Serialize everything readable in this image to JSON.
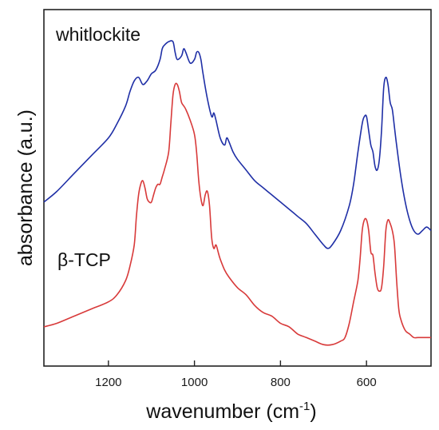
{
  "chart_data": {
    "type": "line",
    "title": "",
    "xlabel": "wavenumber",
    "xlabel_unit_base": "cm",
    "xlabel_unit_exp": "-1",
    "ylabel": "absorbance (a.u.)",
    "xlim": [
      1350,
      450
    ],
    "x_reversed": true,
    "ylim": [
      0,
      1
    ],
    "xticks": [
      1200,
      1000,
      800,
      600
    ],
    "xtick_labels": [
      "1200",
      "1000",
      "800",
      "600"
    ],
    "yticks_shown": false,
    "grid": false,
    "legend": "none",
    "series": [
      {
        "name": "whitlockite",
        "color": "#1f2fa6",
        "x": [
          1350,
          1320,
          1280,
          1240,
          1200,
          1180,
          1160,
          1150,
          1140,
          1130,
          1120,
          1110,
          1100,
          1090,
          1080,
          1075,
          1070,
          1060,
          1050,
          1045,
          1040,
          1030,
          1025,
          1020,
          1010,
          1000,
          995,
          990,
          985,
          980,
          970,
          960,
          955,
          950,
          940,
          930,
          925,
          920,
          910,
          900,
          880,
          860,
          840,
          820,
          800,
          780,
          760,
          740,
          720,
          700,
          690,
          680,
          660,
          640,
          630,
          620,
          610,
          605,
          600,
          595,
          590,
          585,
          580,
          575,
          570,
          565,
          560,
          555,
          550,
          545,
          540,
          535,
          530,
          520,
          510,
          500,
          490,
          480,
          470,
          460,
          450
        ],
        "y": [
          0.46,
          0.49,
          0.54,
          0.59,
          0.64,
          0.68,
          0.73,
          0.77,
          0.8,
          0.81,
          0.79,
          0.8,
          0.82,
          0.83,
          0.86,
          0.89,
          0.9,
          0.91,
          0.91,
          0.88,
          0.86,
          0.87,
          0.89,
          0.88,
          0.85,
          0.86,
          0.88,
          0.88,
          0.86,
          0.82,
          0.75,
          0.7,
          0.71,
          0.69,
          0.64,
          0.62,
          0.64,
          0.63,
          0.6,
          0.58,
          0.55,
          0.52,
          0.5,
          0.48,
          0.46,
          0.44,
          0.42,
          0.4,
          0.37,
          0.34,
          0.33,
          0.34,
          0.38,
          0.45,
          0.51,
          0.6,
          0.68,
          0.7,
          0.7,
          0.66,
          0.62,
          0.6,
          0.56,
          0.55,
          0.58,
          0.66,
          0.78,
          0.81,
          0.79,
          0.74,
          0.72,
          0.67,
          0.62,
          0.53,
          0.46,
          0.41,
          0.38,
          0.37,
          0.38,
          0.39,
          0.38
        ]
      },
      {
        "name": "β-TCP",
        "color": "#d83a3a",
        "x": [
          1350,
          1320,
          1280,
          1240,
          1200,
          1180,
          1160,
          1150,
          1140,
          1135,
          1130,
          1125,
          1120,
          1115,
          1110,
          1105,
          1100,
          1095,
          1090,
          1085,
          1080,
          1075,
          1070,
          1060,
          1055,
          1050,
          1045,
          1040,
          1035,
          1030,
          1025,
          1020,
          1010,
          1000,
          995,
          990,
          985,
          980,
          975,
          970,
          965,
          960,
          955,
          950,
          945,
          940,
          930,
          920,
          900,
          880,
          860,
          840,
          820,
          800,
          780,
          760,
          740,
          720,
          700,
          680,
          660,
          650,
          640,
          630,
          620,
          615,
          610,
          605,
          600,
          595,
          590,
          585,
          580,
          575,
          570,
          565,
          560,
          555,
          550,
          545,
          540,
          535,
          530,
          525,
          520,
          510,
          500,
          490,
          480,
          470,
          460,
          450
        ],
        "y": [
          0.11,
          0.12,
          0.14,
          0.16,
          0.18,
          0.2,
          0.24,
          0.28,
          0.34,
          0.42,
          0.48,
          0.51,
          0.52,
          0.5,
          0.47,
          0.46,
          0.46,
          0.48,
          0.5,
          0.51,
          0.51,
          0.53,
          0.55,
          0.6,
          0.68,
          0.76,
          0.79,
          0.79,
          0.77,
          0.74,
          0.73,
          0.72,
          0.69,
          0.65,
          0.6,
          0.52,
          0.47,
          0.45,
          0.48,
          0.49,
          0.45,
          0.36,
          0.33,
          0.34,
          0.32,
          0.3,
          0.27,
          0.25,
          0.22,
          0.2,
          0.17,
          0.15,
          0.14,
          0.12,
          0.11,
          0.09,
          0.08,
          0.07,
          0.06,
          0.06,
          0.07,
          0.08,
          0.12,
          0.18,
          0.24,
          0.3,
          0.38,
          0.41,
          0.41,
          0.38,
          0.32,
          0.31,
          0.26,
          0.22,
          0.21,
          0.22,
          0.28,
          0.38,
          0.41,
          0.4,
          0.38,
          0.34,
          0.24,
          0.16,
          0.13,
          0.1,
          0.09,
          0.08,
          0.08,
          0.08,
          0.08,
          0.08
        ]
      }
    ],
    "annotations": [
      {
        "text": "whitlockite",
        "series": "whitlockite"
      },
      {
        "text": "β-TCP",
        "series": "β-TCP"
      }
    ]
  }
}
